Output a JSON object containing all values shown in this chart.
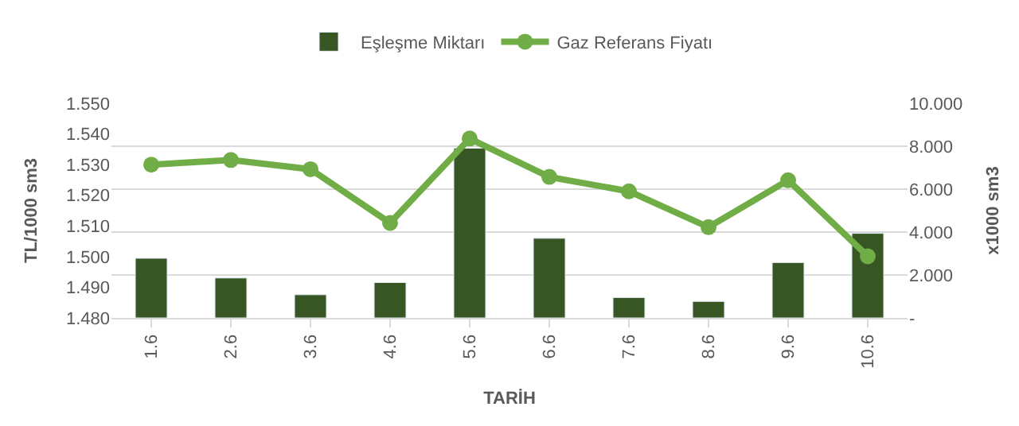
{
  "chart_data": {
    "type": "bar",
    "xlabel": "TARİH",
    "ylabel": "TL/1000 sm3",
    "y2label": "x1000 sm3",
    "categories": [
      "1.6",
      "2.6",
      "3.6",
      "4.6",
      "5.6",
      "6.6",
      "7.6",
      "8.6",
      "9.6",
      "10.6"
    ],
    "series": [
      {
        "name": "Eşleşme Miktarı",
        "axis": "y2",
        "color": "#375623",
        "values": [
          2.78,
          1.86,
          1.08,
          1.65,
          7.91,
          3.71,
          0.95,
          0.77,
          2.58,
          3.94
        ]
      },
      {
        "name": "Gaz Referans Fiyatı",
        "type": "line",
        "axis": "y",
        "color": "#70ad47",
        "marker": "circle",
        "values": [
          1.53,
          1.5315,
          1.5285,
          1.511,
          1.5385,
          1.526,
          1.5213,
          1.5096,
          1.5249,
          1.5001
        ]
      }
    ],
    "ylim": [
      1.48,
      1.55
    ],
    "yticks": [
      {
        "value": 1.48,
        "label": "1.480"
      },
      {
        "value": 1.49,
        "label": "1.490"
      },
      {
        "value": 1.5,
        "label": "1.500"
      },
      {
        "value": 1.51,
        "label": "1.510"
      },
      {
        "value": 1.52,
        "label": "1.520"
      },
      {
        "value": 1.53,
        "label": "1.530"
      },
      {
        "value": 1.54,
        "label": "1.540"
      },
      {
        "value": 1.55,
        "label": "1.550"
      }
    ],
    "y2lim": [
      0,
      10
    ],
    "y2ticks": [
      {
        "value": 0,
        "label": "-"
      },
      {
        "value": 2,
        "label": "2.000"
      },
      {
        "value": 4,
        "label": "4.000"
      },
      {
        "value": 6,
        "label": "6.000"
      },
      {
        "value": 8,
        "label": "8.000"
      },
      {
        "value": 10,
        "label": "10.000"
      }
    ],
    "grid": "y",
    "legend": "top"
  }
}
